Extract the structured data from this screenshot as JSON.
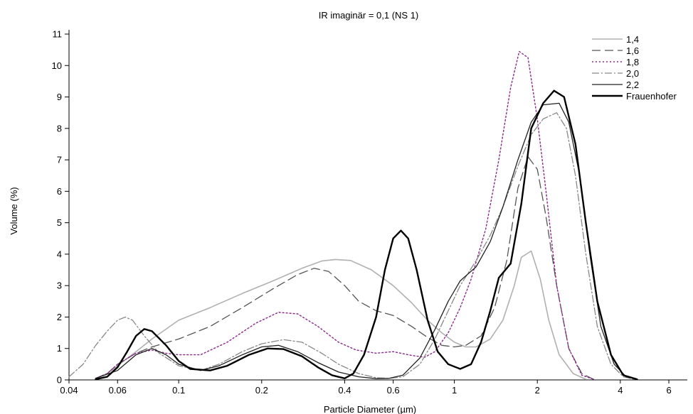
{
  "chart_data": {
    "type": "line",
    "title": "IR imaginär = 0,1 (NS 1)",
    "xlabel": "Particle Diameter (µm)",
    "ylabel": "Volume (%)",
    "xscale": "log",
    "xlim": [
      0.04,
      7
    ],
    "ylim": [
      0,
      11
    ],
    "grid": false,
    "legend_position": "top-right",
    "x_ticks": [
      0.04,
      0.06,
      0.1,
      0.2,
      0.4,
      0.6,
      1,
      2,
      4,
      6
    ],
    "x_tick_labels": [
      "0.04",
      "0.06",
      "0.1",
      "0.2",
      "0.4",
      "0.6",
      "1",
      "2",
      "4",
      "6"
    ],
    "y_ticks": [
      0,
      1,
      2,
      3,
      4,
      5,
      6,
      7,
      8,
      9,
      10,
      11
    ],
    "y_tick_labels": [
      "0",
      "1",
      "2",
      "3",
      "4",
      "5",
      "6",
      "7",
      "8",
      "9",
      "10",
      "11"
    ],
    "series": [
      {
        "name": "1,4",
        "color": "#b0b0b0",
        "dash": "",
        "width": 1.6,
        "points": [
          [
            0.05,
            0.05
          ],
          [
            0.055,
            0.2
          ],
          [
            0.06,
            0.45
          ],
          [
            0.07,
            0.9
          ],
          [
            0.08,
            1.3
          ],
          [
            0.1,
            1.9
          ],
          [
            0.13,
            2.3
          ],
          [
            0.17,
            2.75
          ],
          [
            0.22,
            3.15
          ],
          [
            0.28,
            3.55
          ],
          [
            0.33,
            3.78
          ],
          [
            0.37,
            3.83
          ],
          [
            0.42,
            3.8
          ],
          [
            0.5,
            3.5
          ],
          [
            0.6,
            3.0
          ],
          [
            0.7,
            2.45
          ],
          [
            0.8,
            1.9
          ],
          [
            0.9,
            1.5
          ],
          [
            1.0,
            1.2
          ],
          [
            1.1,
            1.05
          ],
          [
            1.2,
            1.05
          ],
          [
            1.35,
            1.3
          ],
          [
            1.5,
            1.9
          ],
          [
            1.65,
            3.0
          ],
          [
            1.75,
            3.9
          ],
          [
            1.9,
            4.1
          ],
          [
            2.05,
            3.2
          ],
          [
            2.2,
            1.9
          ],
          [
            2.4,
            0.8
          ],
          [
            2.7,
            0.2
          ],
          [
            3.0,
            0.02
          ]
        ]
      },
      {
        "name": "1,6",
        "color": "#555555",
        "dash": "12,6",
        "width": 1.3,
        "points": [
          [
            0.05,
            0.05
          ],
          [
            0.055,
            0.2
          ],
          [
            0.06,
            0.5
          ],
          [
            0.07,
            0.85
          ],
          [
            0.08,
            1.05
          ],
          [
            0.1,
            1.3
          ],
          [
            0.13,
            1.7
          ],
          [
            0.17,
            2.3
          ],
          [
            0.22,
            2.9
          ],
          [
            0.27,
            3.35
          ],
          [
            0.31,
            3.55
          ],
          [
            0.35,
            3.45
          ],
          [
            0.4,
            3.0
          ],
          [
            0.45,
            2.5
          ],
          [
            0.52,
            2.2
          ],
          [
            0.6,
            2.05
          ],
          [
            0.7,
            1.7
          ],
          [
            0.8,
            1.35
          ],
          [
            0.9,
            1.1
          ],
          [
            1.0,
            1.05
          ],
          [
            1.1,
            1.1
          ],
          [
            1.25,
            1.4
          ],
          [
            1.4,
            2.3
          ],
          [
            1.55,
            3.8
          ],
          [
            1.7,
            6.1
          ],
          [
            1.85,
            7.1
          ],
          [
            2.0,
            6.7
          ],
          [
            2.15,
            5.2
          ],
          [
            2.35,
            3.0
          ],
          [
            2.6,
            1.0
          ],
          [
            2.9,
            0.2
          ],
          [
            3.2,
            0.02
          ]
        ]
      },
      {
        "name": "1,8",
        "color": "#8a2a8a",
        "dash": "2,3",
        "width": 1.4,
        "points": [
          [
            0.05,
            0.05
          ],
          [
            0.055,
            0.2
          ],
          [
            0.06,
            0.5
          ],
          [
            0.07,
            0.85
          ],
          [
            0.08,
            0.95
          ],
          [
            0.09,
            0.85
          ],
          [
            0.1,
            0.8
          ],
          [
            0.12,
            0.8
          ],
          [
            0.15,
            1.2
          ],
          [
            0.19,
            1.8
          ],
          [
            0.23,
            2.15
          ],
          [
            0.27,
            2.1
          ],
          [
            0.32,
            1.7
          ],
          [
            0.38,
            1.2
          ],
          [
            0.44,
            0.95
          ],
          [
            0.52,
            0.85
          ],
          [
            0.6,
            0.9
          ],
          [
            0.7,
            0.78
          ],
          [
            0.78,
            0.72
          ],
          [
            0.85,
            0.9
          ],
          [
            0.95,
            1.5
          ],
          [
            1.05,
            2.3
          ],
          [
            1.15,
            3.2
          ],
          [
            1.3,
            4.8
          ],
          [
            1.45,
            7.0
          ],
          [
            1.6,
            9.3
          ],
          [
            1.72,
            10.45
          ],
          [
            1.85,
            10.25
          ],
          [
            2.0,
            8.3
          ],
          [
            2.15,
            6.0
          ],
          [
            2.35,
            3.0
          ],
          [
            2.6,
            1.0
          ],
          [
            2.9,
            0.15
          ],
          [
            3.2,
            0.02
          ]
        ]
      },
      {
        "name": "2,0",
        "color": "#888888",
        "dash": "10,3,2,3",
        "width": 1.3,
        "points": [
          [
            0.04,
            0.1
          ],
          [
            0.045,
            0.5
          ],
          [
            0.05,
            1.1
          ],
          [
            0.055,
            1.55
          ],
          [
            0.06,
            1.9
          ],
          [
            0.064,
            2.0
          ],
          [
            0.068,
            1.9
          ],
          [
            0.075,
            1.4
          ],
          [
            0.085,
            0.85
          ],
          [
            0.1,
            0.45
          ],
          [
            0.12,
            0.3
          ],
          [
            0.14,
            0.5
          ],
          [
            0.17,
            0.9
          ],
          [
            0.2,
            1.15
          ],
          [
            0.24,
            1.28
          ],
          [
            0.28,
            1.2
          ],
          [
            0.33,
            0.85
          ],
          [
            0.38,
            0.5
          ],
          [
            0.45,
            0.2
          ],
          [
            0.52,
            0.07
          ],
          [
            0.58,
            0.05
          ],
          [
            0.65,
            0.1
          ],
          [
            0.75,
            0.5
          ],
          [
            0.85,
            1.3
          ],
          [
            0.95,
            2.2
          ],
          [
            1.05,
            3.0
          ],
          [
            1.2,
            3.8
          ],
          [
            1.35,
            4.6
          ],
          [
            1.5,
            5.5
          ],
          [
            1.7,
            6.8
          ],
          [
            1.9,
            7.8
          ],
          [
            2.1,
            8.3
          ],
          [
            2.35,
            8.5
          ],
          [
            2.55,
            8.0
          ],
          [
            2.75,
            6.5
          ],
          [
            3.0,
            4.0
          ],
          [
            3.3,
            1.7
          ],
          [
            3.7,
            0.5
          ],
          [
            4.1,
            0.1
          ],
          [
            4.5,
            0.02
          ]
        ]
      },
      {
        "name": "2,2",
        "color": "#222222",
        "dash": "",
        "width": 1.3,
        "points": [
          [
            0.05,
            0.05
          ],
          [
            0.06,
            0.3
          ],
          [
            0.07,
            0.8
          ],
          [
            0.08,
            1.0
          ],
          [
            0.09,
            0.8
          ],
          [
            0.1,
            0.5
          ],
          [
            0.12,
            0.3
          ],
          [
            0.14,
            0.45
          ],
          [
            0.17,
            0.8
          ],
          [
            0.2,
            1.05
          ],
          [
            0.23,
            1.1
          ],
          [
            0.27,
            0.9
          ],
          [
            0.32,
            0.55
          ],
          [
            0.38,
            0.25
          ],
          [
            0.45,
            0.1
          ],
          [
            0.52,
            0.04
          ],
          [
            0.58,
            0.05
          ],
          [
            0.65,
            0.15
          ],
          [
            0.75,
            0.7
          ],
          [
            0.85,
            1.6
          ],
          [
            0.95,
            2.5
          ],
          [
            1.05,
            3.15
          ],
          [
            1.2,
            3.6
          ],
          [
            1.35,
            4.4
          ],
          [
            1.5,
            5.5
          ],
          [
            1.7,
            7.0
          ],
          [
            1.9,
            8.2
          ],
          [
            2.1,
            8.75
          ],
          [
            2.4,
            8.8
          ],
          [
            2.6,
            8.2
          ],
          [
            2.85,
            6.5
          ],
          [
            3.1,
            4.0
          ],
          [
            3.4,
            1.7
          ],
          [
            3.8,
            0.5
          ],
          [
            4.2,
            0.1
          ],
          [
            4.6,
            0.02
          ]
        ]
      },
      {
        "name": "Frauenhofer",
        "color": "#000000",
        "dash": "",
        "width": 2.4,
        "points": [
          [
            0.05,
            0.02
          ],
          [
            0.055,
            0.1
          ],
          [
            0.06,
            0.4
          ],
          [
            0.065,
            0.9
          ],
          [
            0.07,
            1.4
          ],
          [
            0.075,
            1.62
          ],
          [
            0.08,
            1.55
          ],
          [
            0.09,
            1.1
          ],
          [
            0.1,
            0.6
          ],
          [
            0.11,
            0.35
          ],
          [
            0.13,
            0.3
          ],
          [
            0.15,
            0.45
          ],
          [
            0.18,
            0.8
          ],
          [
            0.21,
            1.0
          ],
          [
            0.24,
            0.98
          ],
          [
            0.28,
            0.75
          ],
          [
            0.32,
            0.4
          ],
          [
            0.36,
            0.15
          ],
          [
            0.4,
            0.05
          ],
          [
            0.43,
            0.2
          ],
          [
            0.47,
            0.8
          ],
          [
            0.52,
            2.0
          ],
          [
            0.56,
            3.5
          ],
          [
            0.6,
            4.5
          ],
          [
            0.64,
            4.75
          ],
          [
            0.68,
            4.5
          ],
          [
            0.73,
            3.5
          ],
          [
            0.8,
            1.9
          ],
          [
            0.87,
            0.9
          ],
          [
            0.95,
            0.5
          ],
          [
            1.05,
            0.35
          ],
          [
            1.15,
            0.5
          ],
          [
            1.25,
            1.2
          ],
          [
            1.35,
            2.2
          ],
          [
            1.45,
            3.25
          ],
          [
            1.6,
            3.7
          ],
          [
            1.75,
            5.6
          ],
          [
            1.9,
            8.0
          ],
          [
            2.1,
            8.8
          ],
          [
            2.3,
            9.2
          ],
          [
            2.5,
            9.0
          ],
          [
            2.75,
            7.5
          ],
          [
            3.0,
            5.0
          ],
          [
            3.3,
            2.5
          ],
          [
            3.7,
            0.8
          ],
          [
            4.1,
            0.15
          ],
          [
            4.6,
            0.02
          ]
        ]
      }
    ]
  }
}
